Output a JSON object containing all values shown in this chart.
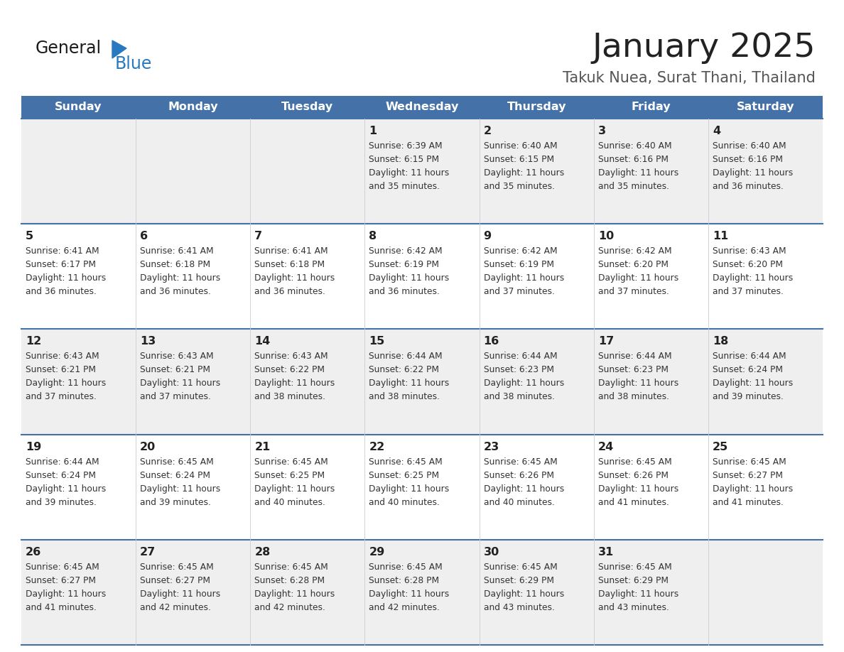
{
  "title": "January 2025",
  "subtitle": "Takuk Nuea, Surat Thani, Thailand",
  "days_of_week": [
    "Sunday",
    "Monday",
    "Tuesday",
    "Wednesday",
    "Thursday",
    "Friday",
    "Saturday"
  ],
  "header_bg": "#4472a8",
  "header_text": "#ffffff",
  "row_bg_odd": "#efefef",
  "row_bg_even": "#ffffff",
  "cell_text_color": "#333333",
  "day_num_color": "#222222",
  "divider_color": "#4472a8",
  "title_color": "#222222",
  "subtitle_color": "#555555",
  "logo_general_color": "#1a1a1a",
  "logo_blue_color": "#2979c0",
  "calendar_data": [
    [
      {
        "day": null,
        "sunrise": null,
        "sunset": null,
        "daylight": null
      },
      {
        "day": null,
        "sunrise": null,
        "sunset": null,
        "daylight": null
      },
      {
        "day": null,
        "sunrise": null,
        "sunset": null,
        "daylight": null
      },
      {
        "day": 1,
        "sunrise": "6:39 AM",
        "sunset": "6:15 PM",
        "daylight": "11 hours and 35 minutes."
      },
      {
        "day": 2,
        "sunrise": "6:40 AM",
        "sunset": "6:15 PM",
        "daylight": "11 hours and 35 minutes."
      },
      {
        "day": 3,
        "sunrise": "6:40 AM",
        "sunset": "6:16 PM",
        "daylight": "11 hours and 35 minutes."
      },
      {
        "day": 4,
        "sunrise": "6:40 AM",
        "sunset": "6:16 PM",
        "daylight": "11 hours and 36 minutes."
      }
    ],
    [
      {
        "day": 5,
        "sunrise": "6:41 AM",
        "sunset": "6:17 PM",
        "daylight": "11 hours and 36 minutes."
      },
      {
        "day": 6,
        "sunrise": "6:41 AM",
        "sunset": "6:18 PM",
        "daylight": "11 hours and 36 minutes."
      },
      {
        "day": 7,
        "sunrise": "6:41 AM",
        "sunset": "6:18 PM",
        "daylight": "11 hours and 36 minutes."
      },
      {
        "day": 8,
        "sunrise": "6:42 AM",
        "sunset": "6:19 PM",
        "daylight": "11 hours and 36 minutes."
      },
      {
        "day": 9,
        "sunrise": "6:42 AM",
        "sunset": "6:19 PM",
        "daylight": "11 hours and 37 minutes."
      },
      {
        "day": 10,
        "sunrise": "6:42 AM",
        "sunset": "6:20 PM",
        "daylight": "11 hours and 37 minutes."
      },
      {
        "day": 11,
        "sunrise": "6:43 AM",
        "sunset": "6:20 PM",
        "daylight": "11 hours and 37 minutes."
      }
    ],
    [
      {
        "day": 12,
        "sunrise": "6:43 AM",
        "sunset": "6:21 PM",
        "daylight": "11 hours and 37 minutes."
      },
      {
        "day": 13,
        "sunrise": "6:43 AM",
        "sunset": "6:21 PM",
        "daylight": "11 hours and 37 minutes."
      },
      {
        "day": 14,
        "sunrise": "6:43 AM",
        "sunset": "6:22 PM",
        "daylight": "11 hours and 38 minutes."
      },
      {
        "day": 15,
        "sunrise": "6:44 AM",
        "sunset": "6:22 PM",
        "daylight": "11 hours and 38 minutes."
      },
      {
        "day": 16,
        "sunrise": "6:44 AM",
        "sunset": "6:23 PM",
        "daylight": "11 hours and 38 minutes."
      },
      {
        "day": 17,
        "sunrise": "6:44 AM",
        "sunset": "6:23 PM",
        "daylight": "11 hours and 38 minutes."
      },
      {
        "day": 18,
        "sunrise": "6:44 AM",
        "sunset": "6:24 PM",
        "daylight": "11 hours and 39 minutes."
      }
    ],
    [
      {
        "day": 19,
        "sunrise": "6:44 AM",
        "sunset": "6:24 PM",
        "daylight": "11 hours and 39 minutes."
      },
      {
        "day": 20,
        "sunrise": "6:45 AM",
        "sunset": "6:24 PM",
        "daylight": "11 hours and 39 minutes."
      },
      {
        "day": 21,
        "sunrise": "6:45 AM",
        "sunset": "6:25 PM",
        "daylight": "11 hours and 40 minutes."
      },
      {
        "day": 22,
        "sunrise": "6:45 AM",
        "sunset": "6:25 PM",
        "daylight": "11 hours and 40 minutes."
      },
      {
        "day": 23,
        "sunrise": "6:45 AM",
        "sunset": "6:26 PM",
        "daylight": "11 hours and 40 minutes."
      },
      {
        "day": 24,
        "sunrise": "6:45 AM",
        "sunset": "6:26 PM",
        "daylight": "11 hours and 41 minutes."
      },
      {
        "day": 25,
        "sunrise": "6:45 AM",
        "sunset": "6:27 PM",
        "daylight": "11 hours and 41 minutes."
      }
    ],
    [
      {
        "day": 26,
        "sunrise": "6:45 AM",
        "sunset": "6:27 PM",
        "daylight": "11 hours and 41 minutes."
      },
      {
        "day": 27,
        "sunrise": "6:45 AM",
        "sunset": "6:27 PM",
        "daylight": "11 hours and 42 minutes."
      },
      {
        "day": 28,
        "sunrise": "6:45 AM",
        "sunset": "6:28 PM",
        "daylight": "11 hours and 42 minutes."
      },
      {
        "day": 29,
        "sunrise": "6:45 AM",
        "sunset": "6:28 PM",
        "daylight": "11 hours and 42 minutes."
      },
      {
        "day": 30,
        "sunrise": "6:45 AM",
        "sunset": "6:29 PM",
        "daylight": "11 hours and 43 minutes."
      },
      {
        "day": 31,
        "sunrise": "6:45 AM",
        "sunset": "6:29 PM",
        "daylight": "11 hours and 43 minutes."
      },
      {
        "day": null,
        "sunrise": null,
        "sunset": null,
        "daylight": null
      }
    ]
  ]
}
